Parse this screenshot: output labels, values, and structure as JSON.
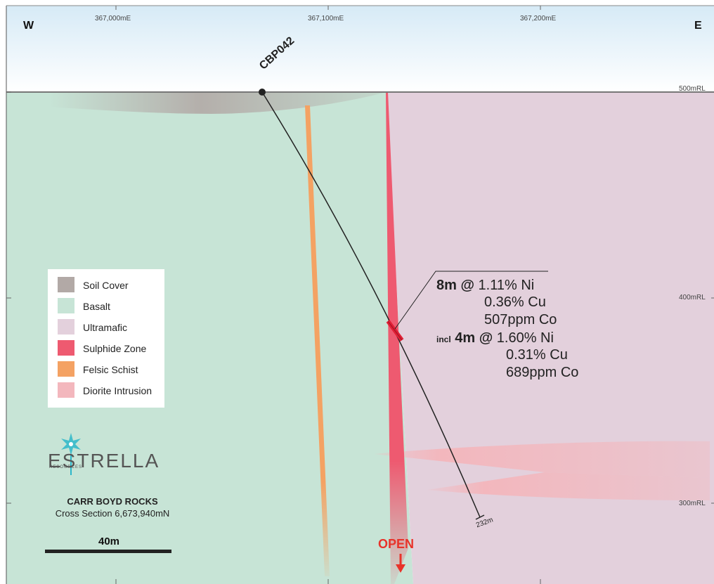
{
  "compass": {
    "west": "W",
    "east": "E"
  },
  "eastings": [
    "367,000mE",
    "367,100mE",
    "367,200mE"
  ],
  "rl_labels": [
    "500mRL",
    "400mRL",
    "300mRL"
  ],
  "drillhole": {
    "name": "CBP042",
    "end_depth": "232m"
  },
  "intercept": {
    "main_length": "8m @",
    "main_grades": [
      "1.11% Ni",
      "0.36% Cu",
      "507ppm Co"
    ],
    "incl_prefix": "incl",
    "incl_length": "4m @",
    "incl_grades": [
      "1.60% Ni",
      "0.31% Cu",
      "689ppm Co"
    ]
  },
  "legend": [
    {
      "label": "Soil Cover",
      "color": "#b2a9a6"
    },
    {
      "label": "Basalt",
      "color": "#c7e4d6"
    },
    {
      "label": "Ultramafic",
      "color": "#e3d0dc"
    },
    {
      "label": "Sulphide Zone",
      "color": "#ee5a70"
    },
    {
      "label": "Felsic Schist",
      "color": "#f4a263"
    },
    {
      "label": "Diorite Intrusion",
      "color": "#f3b7bd"
    }
  ],
  "logo": {
    "name": "ESTRELLA",
    "sub": "RESOURCES"
  },
  "title": {
    "line1": "CARR BOYD ROCKS",
    "line2": "Cross Section 6,673,940mN"
  },
  "scale_bar": {
    "label": "40m"
  },
  "open_label": "OPEN",
  "colors": {
    "sky_top": "#d6eaf6",
    "sky_bottom": "#ffffff",
    "basalt": "#c7e4d6",
    "ultramafic": "#e3d0dc",
    "sulphide": "#ee5a70",
    "felsic": "#f4a263",
    "diorite": "#f3b7bd",
    "soil": "#b2a9a6",
    "open_arrow": "#e8332a",
    "logo_accent": "#2bb7c9"
  }
}
